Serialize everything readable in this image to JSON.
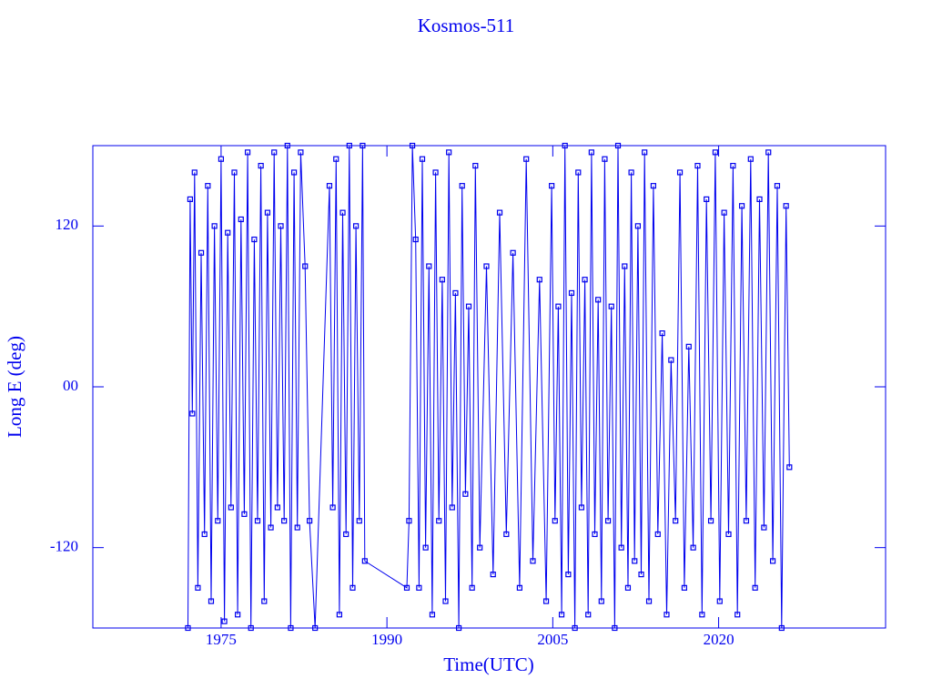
{
  "chart_data": {
    "type": "line",
    "title": "Kosmos-511",
    "xlabel": "Time(UTC)",
    "ylabel": "Long E (deg)",
    "xlim": [
      1963.4,
      2035.1
    ],
    "xticks": [
      1975,
      1990,
      2005,
      2020
    ],
    "ylim": [
      -180,
      180
    ],
    "yticks": [
      120,
      {
        "value": 0,
        "label": "00"
      },
      -120
    ],
    "color": "#0000ee",
    "markers": true,
    "x": [
      1972.0,
      1972.2,
      1972.4,
      1972.6,
      1972.9,
      1973.2,
      1973.5,
      1973.8,
      1974.1,
      1974.4,
      1974.7,
      1975.0,
      1975.3,
      1975.6,
      1975.9,
      1976.2,
      1976.5,
      1976.8,
      1977.1,
      1977.4,
      1977.7,
      1978.0,
      1978.3,
      1978.6,
      1978.9,
      1979.2,
      1979.5,
      1979.8,
      1980.1,
      1980.4,
      1980.7,
      1981.0,
      1981.3,
      1981.6,
      1981.9,
      1982.2,
      1982.6,
      1983.0,
      1983.5,
      1984.8,
      1985.1,
      1985.4,
      1985.7,
      1986.0,
      1986.3,
      1986.6,
      1986.9,
      1987.2,
      1987.5,
      1987.8,
      1988.0,
      1991.8,
      1992.0,
      1992.3,
      1992.6,
      1992.9,
      1993.2,
      1993.5,
      1993.8,
      1994.1,
      1994.4,
      1994.7,
      1995.0,
      1995.3,
      1995.6,
      1995.9,
      1996.2,
      1996.5,
      1996.8,
      1997.1,
      1997.4,
      1997.7,
      1998.0,
      1998.4,
      1999.0,
      1999.6,
      2000.2,
      2000.8,
      2001.4,
      2002.0,
      2002.6,
      2003.2,
      2003.8,
      2004.4,
      2004.9,
      2005.2,
      2005.5,
      2005.8,
      2006.1,
      2006.4,
      2006.7,
      2007.0,
      2007.3,
      2007.6,
      2007.9,
      2008.2,
      2008.5,
      2008.8,
      2009.1,
      2009.4,
      2009.7,
      2010.0,
      2010.3,
      2010.6,
      2010.9,
      2011.2,
      2011.5,
      2011.8,
      2012.1,
      2012.4,
      2012.7,
      2013.0,
      2013.3,
      2013.7,
      2014.1,
      2014.5,
      2014.9,
      2015.3,
      2015.7,
      2016.1,
      2016.5,
      2016.9,
      2017.3,
      2017.7,
      2018.1,
      2018.5,
      2018.9,
      2019.3,
      2019.7,
      2020.1,
      2020.5,
      2020.9,
      2021.3,
      2021.7,
      2022.1,
      2022.5,
      2022.9,
      2023.3,
      2023.7,
      2024.1,
      2024.5,
      2024.9,
      2025.3,
      2025.7,
      2026.1,
      2026.4
    ],
    "values": [
      -180,
      140,
      -20,
      160,
      -150,
      100,
      -110,
      150,
      -160,
      120,
      -100,
      170,
      -175,
      115,
      -90,
      160,
      -170,
      125,
      -95,
      175,
      -180,
      110,
      -100,
      165,
      -160,
      130,
      -105,
      175,
      -90,
      120,
      -100,
      180,
      -180,
      160,
      -105,
      175,
      90,
      -100,
      -180,
      150,
      -90,
      170,
      -170,
      130,
      -110,
      180,
      -150,
      120,
      -100,
      180,
      -130,
      -150,
      -100,
      180,
      110,
      -150,
      170,
      -120,
      90,
      -170,
      160,
      -100,
      80,
      -160,
      175,
      -90,
      70,
      -180,
      150,
      -80,
      60,
      -150,
      165,
      -120,
      90,
      -140,
      130,
      -110,
      100,
      -150,
      170,
      -130,
      80,
      -160,
      150,
      -100,
      60,
      -170,
      180,
      -140,
      70,
      -180,
      160,
      -90,
      80,
      -170,
      175,
      -110,
      65,
      -160,
      170,
      -100,
      60,
      -180,
      180,
      -120,
      90,
      -150,
      160,
      -130,
      120,
      -140,
      175,
      -160,
      150,
      -110,
      40,
      -170,
      20,
      -100,
      160,
      -150,
      30,
      -120,
      165,
      -170,
      140,
      -100,
      175,
      -160,
      130,
      -110,
      165,
      -170,
      135,
      -100,
      170,
      -150,
      140,
      -105,
      175,
      -130,
      150,
      -180,
      135,
      -60
    ]
  }
}
